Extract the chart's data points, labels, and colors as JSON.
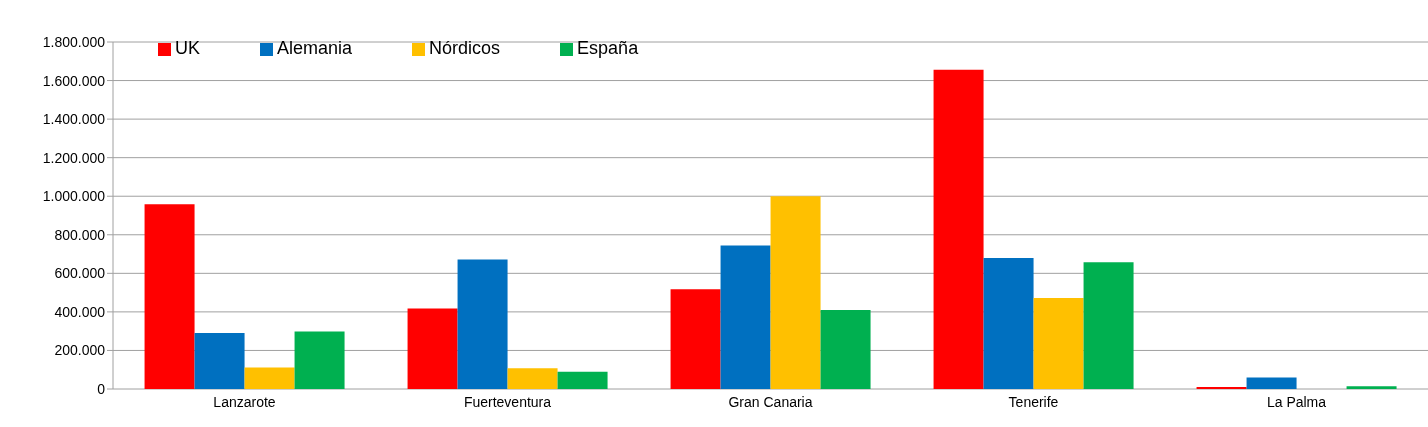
{
  "chart_data": {
    "type": "bar",
    "categories": [
      "Lanzarote",
      "Fuerteventura",
      "Gran Canaria",
      "Tenerife",
      "La Palma"
    ],
    "series": [
      {
        "name": "UK",
        "color": "#ff0000",
        "values": [
          959000,
          417000,
          518000,
          1656000,
          11000
        ]
      },
      {
        "name": "Alemania",
        "color": "#0070c0",
        "values": [
          290000,
          672000,
          745000,
          679000,
          60000
        ]
      },
      {
        "name": "Nórdicos",
        "color": "#ffc000",
        "values": [
          111000,
          107000,
          1000000,
          472000,
          null
        ]
      },
      {
        "name": "España",
        "color": "#00b050",
        "values": [
          298000,
          89000,
          410000,
          658000,
          14000
        ]
      }
    ],
    "ylim": [
      0,
      1800000
    ],
    "yticks": [
      {
        "value": 0,
        "label": "0"
      },
      {
        "value": 200000,
        "label": "200.000"
      },
      {
        "value": 400000,
        "label": "400.000"
      },
      {
        "value": 600000,
        "label": "600.000"
      },
      {
        "value": 800000,
        "label": "800.000"
      },
      {
        "value": 1000000,
        "label": "1.000.000"
      },
      {
        "value": 1200000,
        "label": "1.200.000"
      },
      {
        "value": 1400000,
        "label": "1.400.000"
      },
      {
        "value": 1600000,
        "label": "1.600.000"
      },
      {
        "value": 1800000,
        "label": "1.800.000"
      }
    ],
    "grid": "y",
    "legend": "top left"
  }
}
